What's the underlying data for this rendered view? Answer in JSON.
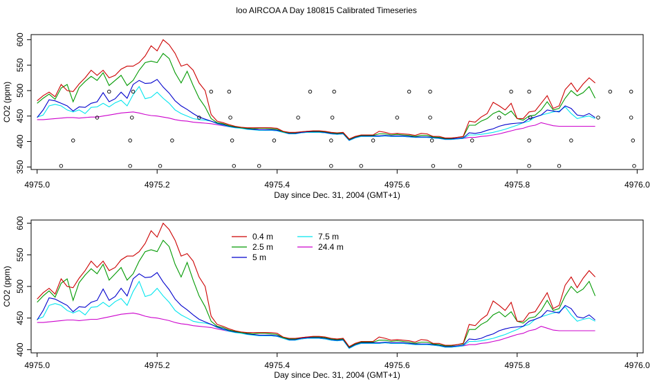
{
  "title": "loo AIRCOA A  Day 180815  Calibrated Timeseries",
  "colors": {
    "0.4 m": "#cc0000",
    "2.5 m": "#009900",
    "5 m": "#0000cc",
    "7.5 m": "#00e5ee",
    "24.4 m": "#cc00cc"
  },
  "chart_data": [
    {
      "type": "line",
      "title": "loo AIRCOA A  Day 180815  Calibrated Timeseries",
      "xlabel": "Day since Dec. 31, 2004 (GMT+1)",
      "ylabel": "CO2 (ppm)",
      "xlim": [
        4974.99,
        4976.01
      ],
      "ylim": [
        345,
        610
      ],
      "xticks": [
        4975.0,
        4975.2,
        4975.4,
        4975.6,
        4975.8,
        4976.0
      ],
      "xtick_labels": [
        "4975.0",
        "4975.2",
        "4975.4",
        "4975.6",
        "4975.8",
        "4976.0"
      ],
      "yticks": [
        350,
        400,
        450,
        500,
        550,
        600
      ],
      "ytick_labels": [
        "350",
        "400",
        "450",
        "500",
        "550",
        "600"
      ],
      "grid": false,
      "legend": null,
      "x_start": 4975.0,
      "x_step": 0.01,
      "series": [
        {
          "name": "0.4 m",
          "color": "#cc0000",
          "values": [
            480,
            490,
            497,
            488,
            512,
            500,
            498,
            513,
            525,
            540,
            530,
            540,
            525,
            530,
            542,
            548,
            548,
            555,
            568,
            588,
            578,
            600,
            590,
            573,
            548,
            552,
            540,
            515,
            500,
            453,
            440,
            437,
            433,
            430,
            428,
            427,
            427,
            427,
            427,
            427,
            426,
            420,
            418,
            418,
            419,
            420,
            421,
            421,
            420,
            418,
            417,
            418,
            405,
            410,
            413,
            413,
            413,
            420,
            418,
            415,
            416,
            415,
            414,
            412,
            416,
            415,
            410,
            410,
            407,
            407,
            408,
            410,
            440,
            438,
            448,
            455,
            477,
            470,
            462,
            475,
            445,
            445,
            458,
            460,
            475,
            490,
            465,
            470,
            502,
            515,
            498,
            513,
            525,
            515
          ]
        },
        {
          "name": "2.5 m",
          "color": "#009900",
          "values": [
            475,
            485,
            493,
            483,
            505,
            512,
            478,
            506,
            518,
            528,
            520,
            535,
            510,
            520,
            530,
            510,
            520,
            540,
            555,
            558,
            555,
            573,
            563,
            535,
            515,
            538,
            510,
            485,
            468,
            445,
            437,
            435,
            431,
            429,
            427,
            426,
            425,
            426,
            426,
            425,
            424,
            419,
            417,
            417,
            419,
            420,
            420,
            420,
            419,
            417,
            416,
            417,
            404,
            409,
            412,
            412,
            412,
            415,
            415,
            413,
            414,
            413,
            412,
            410,
            412,
            412,
            409,
            408,
            406,
            406,
            408,
            409,
            432,
            432,
            440,
            445,
            455,
            460,
            452,
            460,
            445,
            442,
            450,
            452,
            462,
            478,
            462,
            465,
            485,
            500,
            490,
            496,
            508,
            485
          ]
        },
        {
          "name": "5 m",
          "color": "#0000cc",
          "values": [
            447,
            462,
            482,
            480,
            475,
            470,
            460,
            468,
            467,
            475,
            478,
            496,
            478,
            484,
            497,
            485,
            512,
            520,
            514,
            515,
            522,
            507,
            495,
            480,
            470,
            463,
            455,
            448,
            444,
            440,
            436,
            433,
            430,
            428,
            427,
            425,
            424,
            423,
            423,
            423,
            422,
            419,
            416,
            416,
            418,
            419,
            419,
            419,
            418,
            416,
            415,
            416,
            403,
            408,
            411,
            411,
            411,
            411,
            412,
            411,
            411,
            411,
            410,
            409,
            409,
            409,
            408,
            407,
            405,
            405,
            406,
            407,
            417,
            416,
            418,
            422,
            425,
            430,
            433,
            435,
            436,
            437,
            445,
            448,
            452,
            462,
            460,
            458,
            470,
            465,
            452,
            450,
            455,
            447
          ]
        },
        {
          "name": "7.5 m",
          "color": "#00e5ee",
          "values": [
            448,
            452,
            470,
            473,
            470,
            462,
            458,
            462,
            455,
            467,
            468,
            475,
            468,
            476,
            481,
            470,
            492,
            508,
            484,
            487,
            497,
            485,
            475,
            462,
            455,
            450,
            445,
            443,
            442,
            440,
            435,
            432,
            429,
            427,
            426,
            424,
            423,
            422,
            422,
            422,
            421,
            418,
            415,
            415,
            417,
            418,
            418,
            418,
            417,
            415,
            414,
            415,
            402,
            407,
            410,
            410,
            410,
            410,
            411,
            410,
            410,
            410,
            409,
            408,
            408,
            408,
            407,
            406,
            404,
            404,
            405,
            406,
            413,
            413,
            414,
            416,
            418,
            421,
            424,
            428,
            432,
            437,
            440,
            448,
            452,
            455,
            458,
            460,
            468,
            455,
            445,
            448,
            450,
            445
          ]
        },
        {
          "name": "24.4 m",
          "color": "#cc00cc",
          "values": [
            443,
            443,
            444,
            445,
            446,
            447,
            447,
            446,
            447,
            448,
            448,
            450,
            452,
            454,
            456,
            457,
            458,
            456,
            453,
            451,
            450,
            448,
            446,
            443,
            441,
            440,
            438,
            437,
            436,
            435,
            433,
            431,
            429,
            428,
            427,
            425,
            424,
            423,
            422,
            422,
            421,
            418,
            415,
            415,
            417,
            418,
            418,
            418,
            417,
            415,
            414,
            415,
            402,
            407,
            410,
            410,
            410,
            410,
            411,
            410,
            410,
            410,
            409,
            408,
            408,
            408,
            407,
            406,
            404,
            404,
            405,
            406,
            408,
            408,
            410,
            411,
            413,
            415,
            418,
            421,
            424,
            426,
            430,
            432,
            437,
            434,
            431,
            430,
            430,
            430,
            430,
            430,
            430,
            430
          ]
        }
      ],
      "markers": [
        {
          "x": 4975.04,
          "y": 352
        },
        {
          "x": 4975.06,
          "y": 402
        },
        {
          "x": 4975.1,
          "y": 447
        },
        {
          "x": 4975.12,
          "y": 498
        },
        {
          "x": 4975.155,
          "y": 352
        },
        {
          "x": 4975.155,
          "y": 402
        },
        {
          "x": 4975.158,
          "y": 447
        },
        {
          "x": 4975.16,
          "y": 498
        },
        {
          "x": 4975.205,
          "y": 352
        },
        {
          "x": 4975.225,
          "y": 402
        },
        {
          "x": 4975.27,
          "y": 447
        },
        {
          "x": 4975.29,
          "y": 498
        },
        {
          "x": 4975.32,
          "y": 498
        },
        {
          "x": 4975.322,
          "y": 447
        },
        {
          "x": 4975.325,
          "y": 402
        },
        {
          "x": 4975.328,
          "y": 352
        },
        {
          "x": 4975.37,
          "y": 352
        },
        {
          "x": 4975.395,
          "y": 402
        },
        {
          "x": 4975.435,
          "y": 447
        },
        {
          "x": 4975.455,
          "y": 498
        },
        {
          "x": 4975.49,
          "y": 352
        },
        {
          "x": 4975.49,
          "y": 402
        },
        {
          "x": 4975.492,
          "y": 447
        },
        {
          "x": 4975.495,
          "y": 498
        },
        {
          "x": 4975.54,
          "y": 352
        },
        {
          "x": 4975.56,
          "y": 402
        },
        {
          "x": 4975.6,
          "y": 447
        },
        {
          "x": 4975.62,
          "y": 498
        },
        {
          "x": 4975.655,
          "y": 498
        },
        {
          "x": 4975.655,
          "y": 447
        },
        {
          "x": 4975.658,
          "y": 402
        },
        {
          "x": 4975.66,
          "y": 352
        },
        {
          "x": 4975.705,
          "y": 352
        },
        {
          "x": 4975.725,
          "y": 402
        },
        {
          "x": 4975.77,
          "y": 447
        },
        {
          "x": 4975.79,
          "y": 498
        },
        {
          "x": 4975.82,
          "y": 498
        },
        {
          "x": 4975.822,
          "y": 447
        },
        {
          "x": 4975.82,
          "y": 402
        },
        {
          "x": 4975.82,
          "y": 352
        },
        {
          "x": 4975.87,
          "y": 352
        },
        {
          "x": 4975.89,
          "y": 402
        },
        {
          "x": 4975.935,
          "y": 447
        },
        {
          "x": 4975.955,
          "y": 498
        },
        {
          "x": 4975.99,
          "y": 498
        },
        {
          "x": 4975.99,
          "y": 447
        },
        {
          "x": 4975.993,
          "y": 402
        },
        {
          "x": 4975.995,
          "y": 352
        }
      ]
    },
    {
      "type": "line",
      "title": "",
      "xlabel": "Day since Dec. 31, 2004 (GMT+1)",
      "ylabel": "CO2 (ppm)",
      "xlim": [
        4974.99,
        4976.01
      ],
      "ylim": [
        395,
        605
      ],
      "xticks": [
        4975.0,
        4975.2,
        4975.4,
        4975.6,
        4975.8,
        4976.0
      ],
      "xtick_labels": [
        "4975.0",
        "4975.2",
        "4975.4",
        "4975.6",
        "4975.8",
        "4976.0"
      ],
      "yticks": [
        400,
        450,
        500,
        550,
        600
      ],
      "ytick_labels": [
        "400",
        "450",
        "500",
        "550",
        "600"
      ],
      "grid": false,
      "legend": {
        "position": "top-left (inside)",
        "entries": [
          "0.4 m",
          "2.5 m",
          "5 m",
          "7.5 m",
          "24.4 m"
        ]
      },
      "series_ref": "same as chart_data[0].series"
    }
  ]
}
